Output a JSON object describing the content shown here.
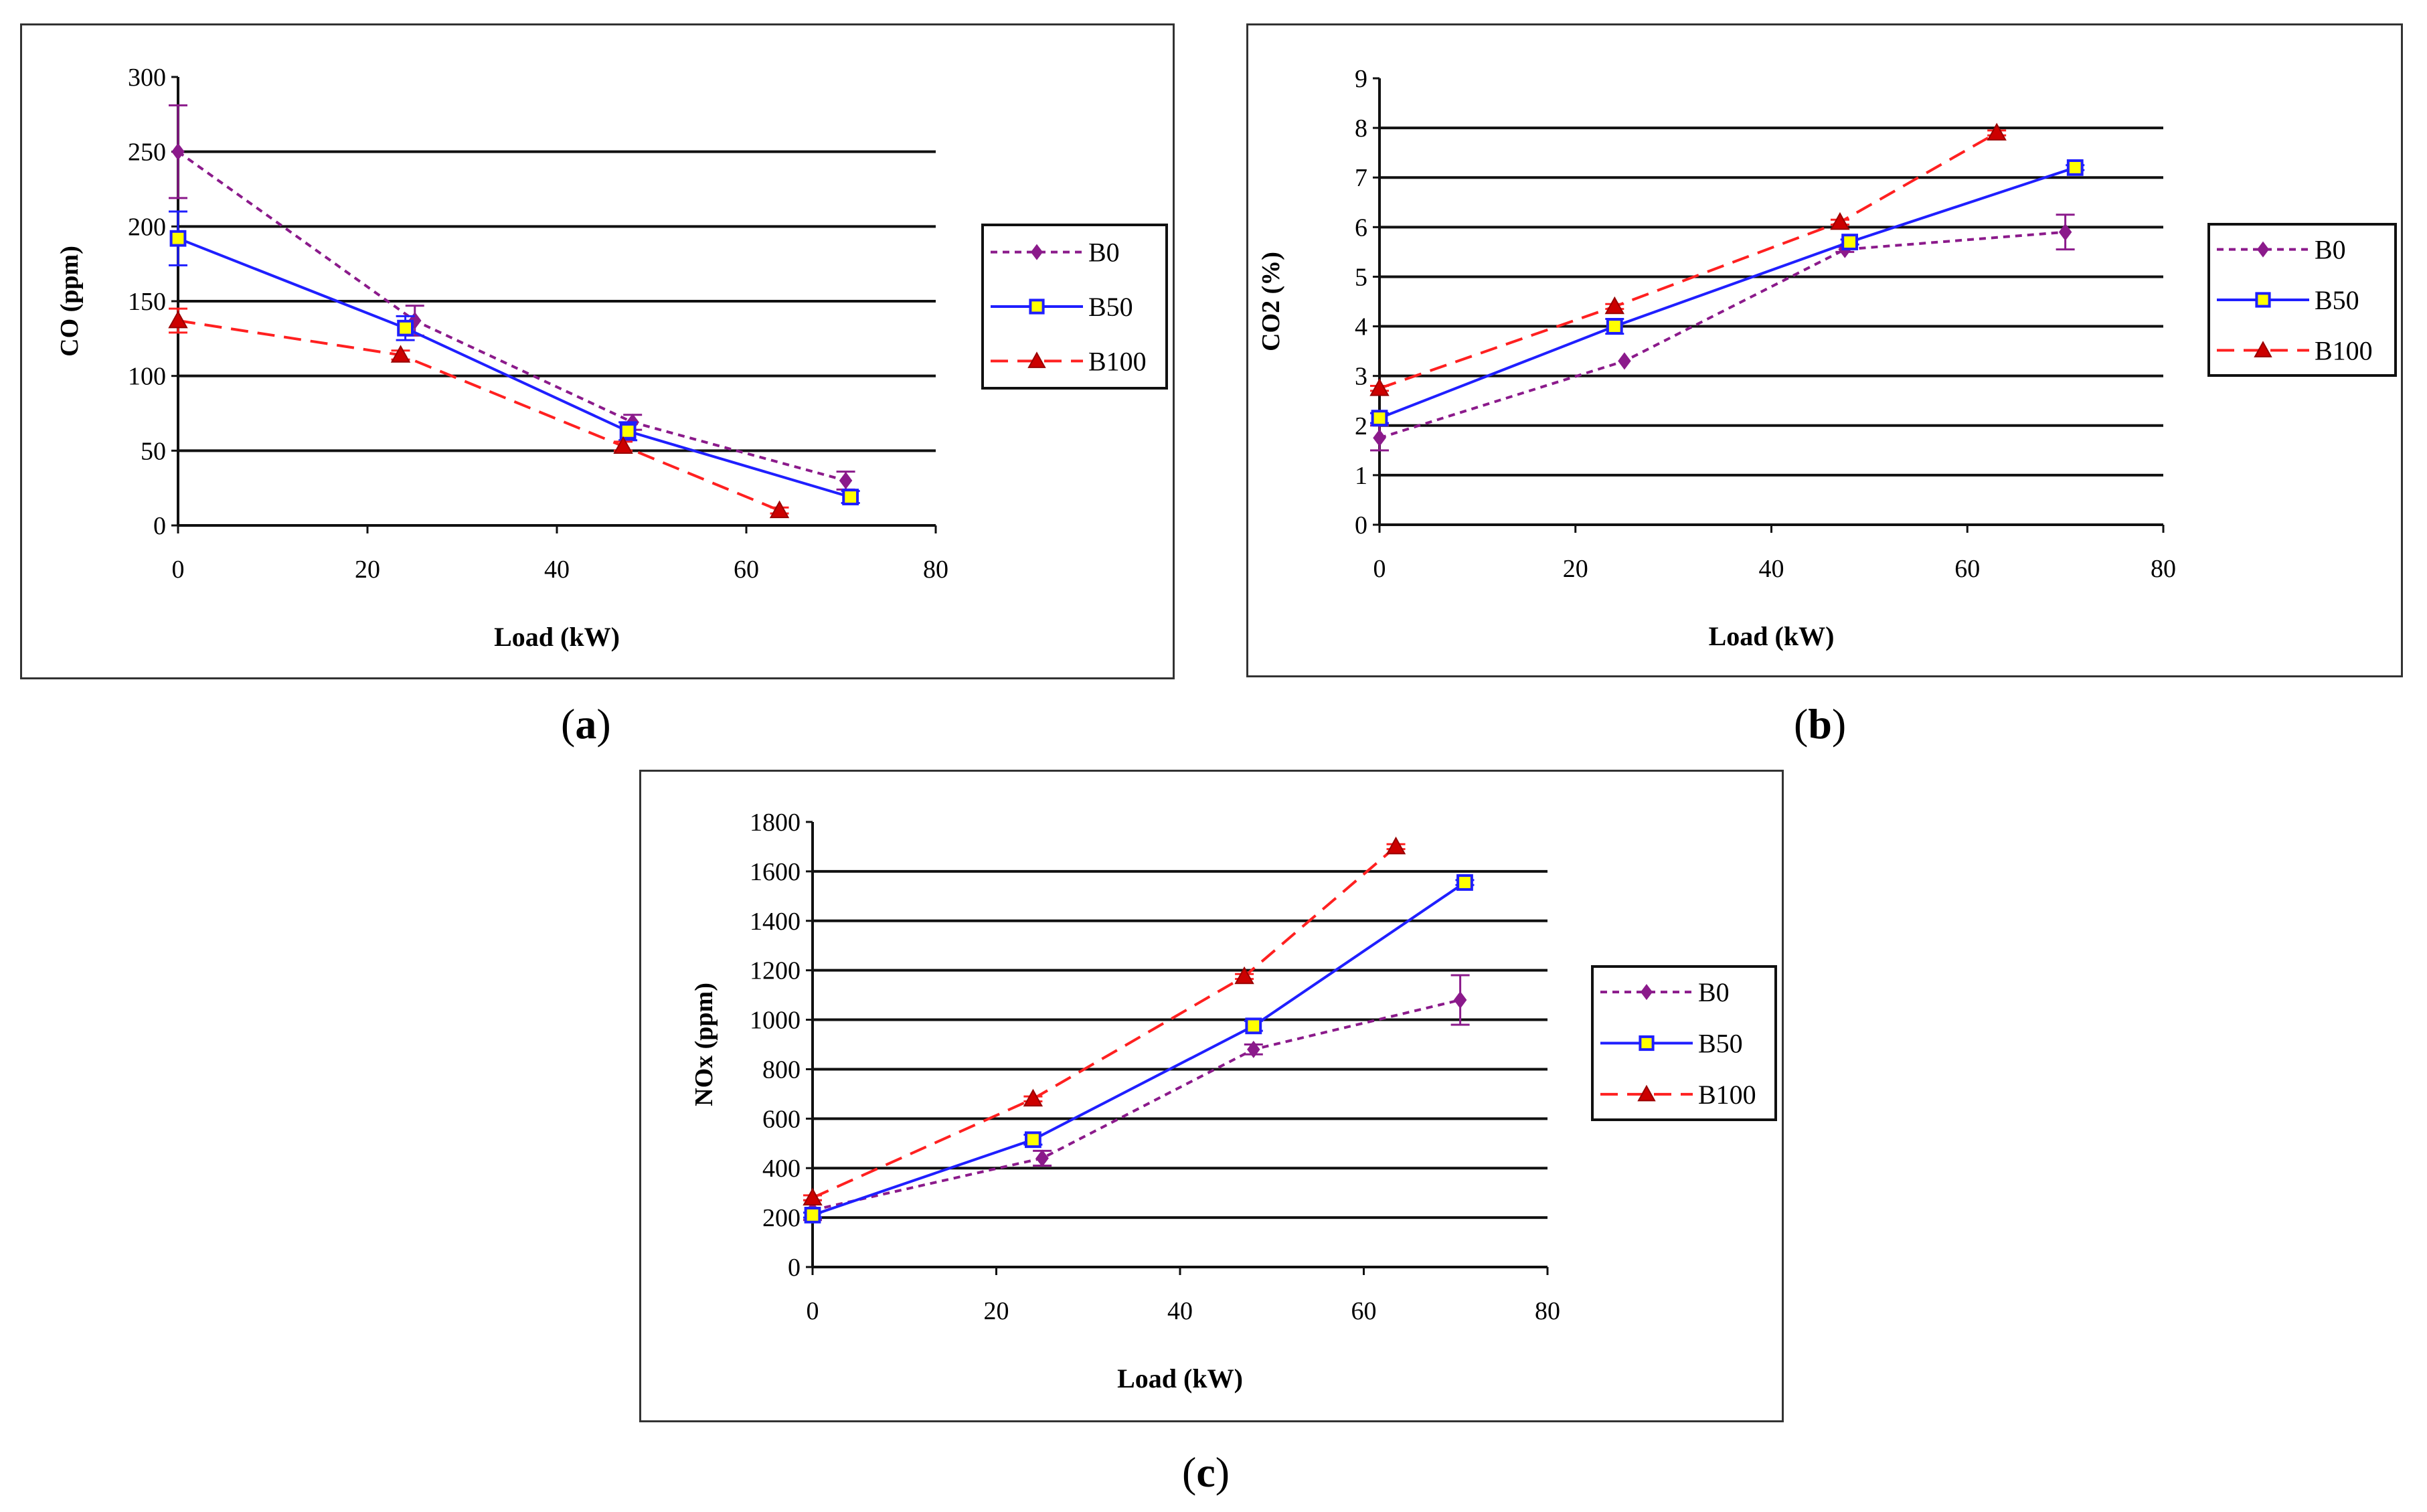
{
  "captions": {
    "a": "a",
    "b": "b",
    "c": "c"
  },
  "chart_data": [
    {
      "id": "a",
      "type": "line",
      "xlabel": "Load (kW)",
      "ylabel": "CO (ppm)",
      "xlim": [
        0,
        80
      ],
      "xticks": [
        0,
        20,
        40,
        60,
        80
      ],
      "ylim": [
        0,
        300
      ],
      "yticks": [
        0,
        50,
        100,
        150,
        200,
        250,
        300
      ],
      "grid": "horizontal",
      "legend": "right",
      "series": [
        {
          "name": "B0",
          "color": "#8B1A8B",
          "marker": "diamond",
          "dash": "short",
          "x": [
            0,
            25,
            48,
            70.5
          ],
          "y": [
            250,
            137,
            69,
            30
          ],
          "err": [
            31,
            10,
            5,
            6
          ]
        },
        {
          "name": "B50",
          "color": "#1F1FFF",
          "marker": "square",
          "dash": "solid",
          "x": [
            0,
            24,
            47.5,
            71
          ],
          "y": [
            192,
            132,
            63,
            19
          ],
          "err": [
            18,
            8,
            6,
            4
          ]
        },
        {
          "name": "B100",
          "color": "#FF2020",
          "marker": "triangle",
          "dash": "long",
          "x": [
            0,
            23.5,
            47,
            63.5
          ],
          "y": [
            137,
            114,
            53,
            10
          ],
          "err": [
            8,
            3,
            3,
            2
          ]
        }
      ]
    },
    {
      "id": "b",
      "type": "line",
      "xlabel": "Load (kW)",
      "ylabel": "CO2 (%)",
      "xlim": [
        0,
        80
      ],
      "xticks": [
        0,
        20,
        40,
        60,
        80
      ],
      "ylim": [
        0,
        9
      ],
      "yticks": [
        0,
        1,
        2,
        3,
        4,
        5,
        6,
        7,
        8,
        9
      ],
      "grid": "horizontal",
      "legend": "right",
      "series": [
        {
          "name": "B0",
          "color": "#8B1A8B",
          "marker": "diamond",
          "dash": "short",
          "x": [
            0,
            25,
            47.5,
            70
          ],
          "y": [
            1.75,
            3.3,
            5.55,
            5.9
          ],
          "err": [
            0.25,
            0,
            0.05,
            0.35
          ]
        },
        {
          "name": "B50",
          "color": "#1F1FFF",
          "marker": "square",
          "dash": "solid",
          "x": [
            0,
            24,
            48,
            71
          ],
          "y": [
            2.15,
            4.0,
            5.7,
            7.2
          ],
          "err": [
            0.1,
            0.15,
            0.05,
            0.05
          ]
        },
        {
          "name": "B100",
          "color": "#FF2020",
          "marker": "triangle",
          "dash": "long",
          "x": [
            0,
            24,
            47,
            63
          ],
          "y": [
            2.75,
            4.4,
            6.1,
            7.9
          ],
          "err": [
            0.05,
            0.05,
            0.05,
            0.05
          ]
        }
      ]
    },
    {
      "id": "c",
      "type": "line",
      "xlabel": "Load (kW)",
      "ylabel": "NOx (ppm)",
      "xlim": [
        0,
        80
      ],
      "xticks": [
        0,
        20,
        40,
        60,
        80
      ],
      "ylim": [
        0,
        1800
      ],
      "yticks": [
        0,
        200,
        400,
        600,
        800,
        1000,
        1200,
        1400,
        1600,
        1800
      ],
      "grid": "horizontal",
      "legend": "right",
      "series": [
        {
          "name": "B0",
          "color": "#8B1A8B",
          "marker": "diamond",
          "dash": "short",
          "x": [
            0,
            25,
            48,
            70.5
          ],
          "y": [
            230,
            440,
            880,
            1080
          ],
          "err": [
            40,
            30,
            20,
            100
          ]
        },
        {
          "name": "B50",
          "color": "#1F1FFF",
          "marker": "square",
          "dash": "solid",
          "x": [
            0,
            24,
            48,
            71
          ],
          "y": [
            210,
            515,
            975,
            1555
          ],
          "err": [
            10,
            20,
            20,
            10
          ]
        },
        {
          "name": "B100",
          "color": "#FF2020",
          "marker": "triangle",
          "dash": "long",
          "x": [
            0,
            24,
            47,
            63.5
          ],
          "y": [
            280,
            680,
            1175,
            1700
          ],
          "err": [
            10,
            10,
            10,
            10
          ]
        }
      ]
    }
  ]
}
